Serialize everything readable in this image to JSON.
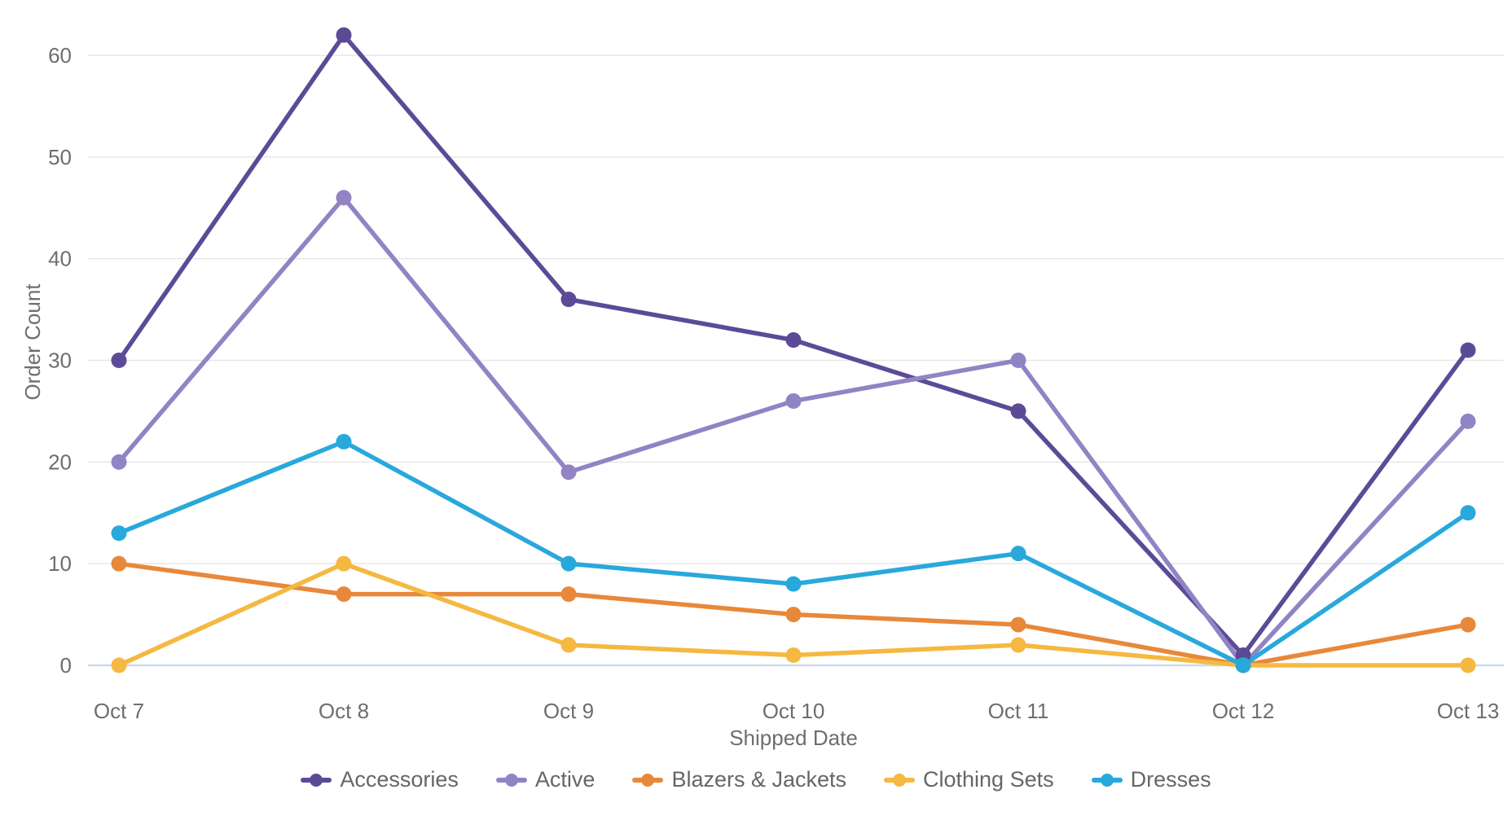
{
  "chart_data": {
    "type": "line",
    "title": "",
    "xlabel": "Shipped Date",
    "ylabel": "Order Count",
    "categories": [
      "Oct 7",
      "Oct 8",
      "Oct 9",
      "Oct 10",
      "Oct 11",
      "Oct 12",
      "Oct 13"
    ],
    "series": [
      {
        "name": "Accessories",
        "color": "#5b4b97",
        "values": [
          30,
          62,
          36,
          32,
          25,
          1,
          31
        ]
      },
      {
        "name": "Active",
        "color": "#9184c4",
        "values": [
          20,
          46,
          19,
          26,
          30,
          0,
          24
        ]
      },
      {
        "name": "Blazers & Jackets",
        "color": "#e8883a",
        "values": [
          10,
          7,
          7,
          5,
          4,
          0,
          4
        ]
      },
      {
        "name": "Clothing Sets",
        "color": "#f5b841",
        "values": [
          0,
          10,
          2,
          1,
          2,
          0,
          0
        ]
      },
      {
        "name": "Dresses",
        "color": "#29a8dc",
        "values": [
          13,
          22,
          10,
          8,
          11,
          0,
          15
        ]
      }
    ],
    "yticks": [
      0,
      10,
      20,
      30,
      40,
      50,
      60
    ],
    "ylim": [
      0,
      65.5
    ],
    "grid": true,
    "legend_position": "bottom"
  },
  "colors": {
    "background": "#ffffff",
    "grid_line": "#e7e7e7",
    "zero_axis_line": "#ccd9ee",
    "tick_text": "#6e6e6e",
    "legend_text": "#666666"
  }
}
